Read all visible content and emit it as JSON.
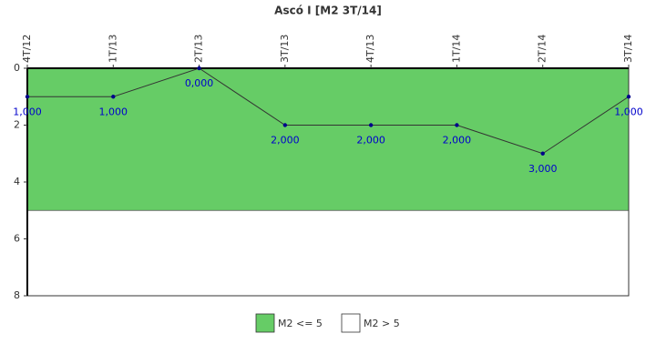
{
  "chart_data": {
    "type": "line",
    "title": "Ascó I [M2 3T/14]",
    "categories": [
      "4T/12",
      "1T/13",
      "2T/13",
      "3T/13",
      "4T/13",
      "1T/14",
      "2T/14",
      "3T/14"
    ],
    "series": [
      {
        "color": "#333333",
        "marker_color": "#00008b",
        "label_color": "#0000cc",
        "values": [
          1,
          1,
          0,
          2,
          2,
          2,
          3,
          1
        ],
        "value_labels": [
          "1,000",
          "1,000",
          "0,000",
          "2,000",
          "2,000",
          "2,000",
          "3,000",
          "1,000"
        ]
      }
    ],
    "bands": [
      {
        "name": "M2 <= 5",
        "color": "#66cc66",
        "range": [
          0,
          5
        ]
      },
      {
        "name": "M2 > 5",
        "color": "#ffffff",
        "range": [
          5,
          8
        ]
      }
    ],
    "ylim": [
      0,
      8
    ],
    "yticks": [
      0,
      2,
      4,
      6,
      8
    ],
    "y_inverted": true
  }
}
